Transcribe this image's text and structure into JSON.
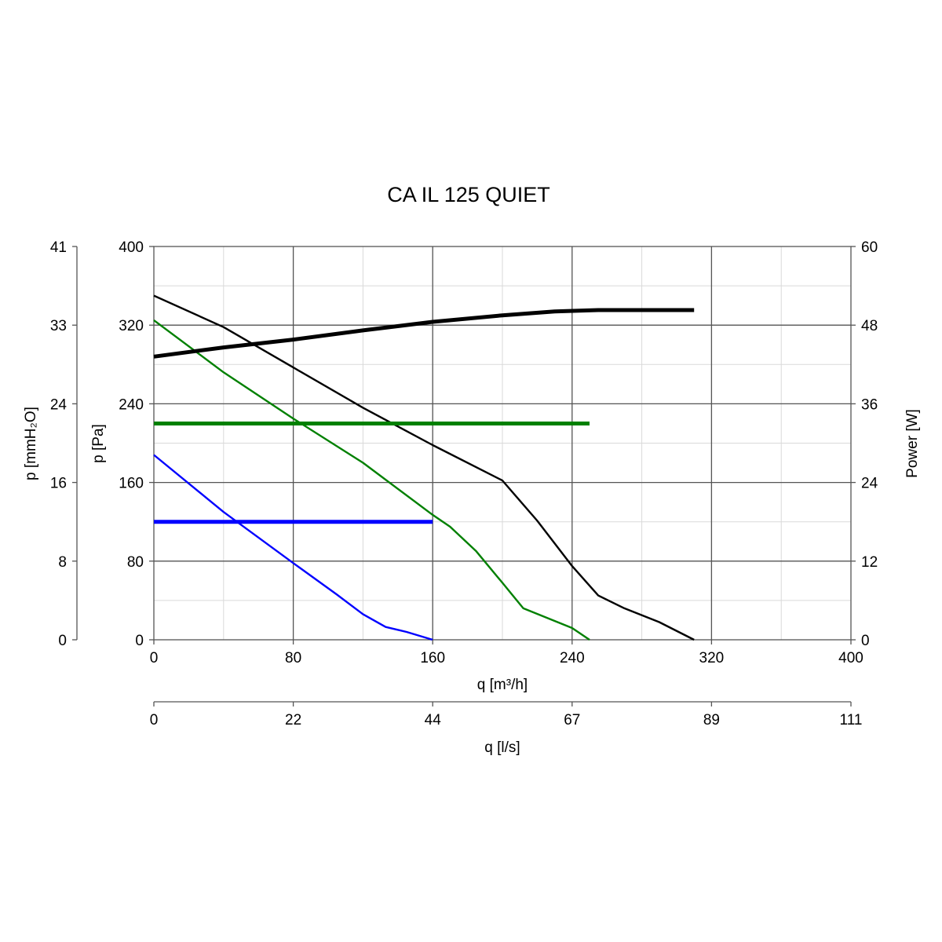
{
  "chart_data": {
    "type": "line",
    "title": "CA IL 125 QUIET",
    "axes": {
      "x_primary": {
        "label": "q [m³/h]",
        "range": [
          0,
          400
        ],
        "ticks": [
          "0",
          "80",
          "160",
          "240",
          "320",
          "400"
        ],
        "minor_gridlines_every": 40
      },
      "x_secondary": {
        "label": "q [l/s]",
        "ticks": [
          "0",
          "22",
          "44",
          "67",
          "89",
          "111"
        ]
      },
      "y_left": {
        "label": "p [Pa]",
        "range": [
          0,
          400
        ],
        "ticks": [
          "0",
          "80",
          "160",
          "240",
          "320",
          "400"
        ],
        "minor_gridlines_every": 40
      },
      "y_left_outer": {
        "label": "p [mmH₂O]",
        "ticks": [
          "0",
          "8",
          "16",
          "24",
          "33",
          "41"
        ]
      },
      "y_right": {
        "label": "Power [W]",
        "range": [
          0,
          60
        ],
        "ticks": [
          "0",
          "12",
          "24",
          "36",
          "48",
          "60"
        ]
      }
    },
    "grid": true,
    "legend": "none",
    "series": [
      {
        "kind": "pressure",
        "axis": "y_left",
        "color": "#000000",
        "x": [
          0,
          40,
          80,
          120,
          160,
          200,
          220,
          240,
          255,
          270,
          290,
          310
        ],
        "y": [
          350,
          318,
          277,
          236,
          198,
          162,
          121,
          75,
          45,
          32,
          18,
          0
        ]
      },
      {
        "kind": "pressure",
        "axis": "y_left",
        "color": "#008000",
        "x": [
          0,
          40,
          80,
          120,
          160,
          170,
          185,
          200,
          212,
          240,
          250
        ],
        "y": [
          325,
          272,
          225,
          180,
          127,
          115,
          90,
          58,
          32,
          12,
          0
        ]
      },
      {
        "kind": "pressure",
        "axis": "y_left",
        "color": "#0000ff",
        "x": [
          0,
          40,
          80,
          105,
          120,
          133,
          145,
          160
        ],
        "y": [
          188,
          130,
          78,
          46,
          26,
          13,
          8,
          0
        ]
      },
      {
        "kind": "power",
        "axis": "y_right",
        "color": "#000000",
        "x": [
          0,
          40,
          80,
          120,
          160,
          200,
          230,
          255,
          290,
          310
        ],
        "y": [
          43.2,
          44.6,
          45.8,
          47.2,
          48.5,
          49.5,
          50.1,
          50.3,
          50.3,
          50.3
        ]
      },
      {
        "kind": "power",
        "axis": "y_right",
        "color": "#008000",
        "x": [
          0,
          250
        ],
        "y": [
          33,
          33
        ]
      },
      {
        "kind": "power",
        "axis": "y_right",
        "color": "#0000ff",
        "x": [
          0,
          160
        ],
        "y": [
          18,
          18
        ]
      }
    ]
  }
}
